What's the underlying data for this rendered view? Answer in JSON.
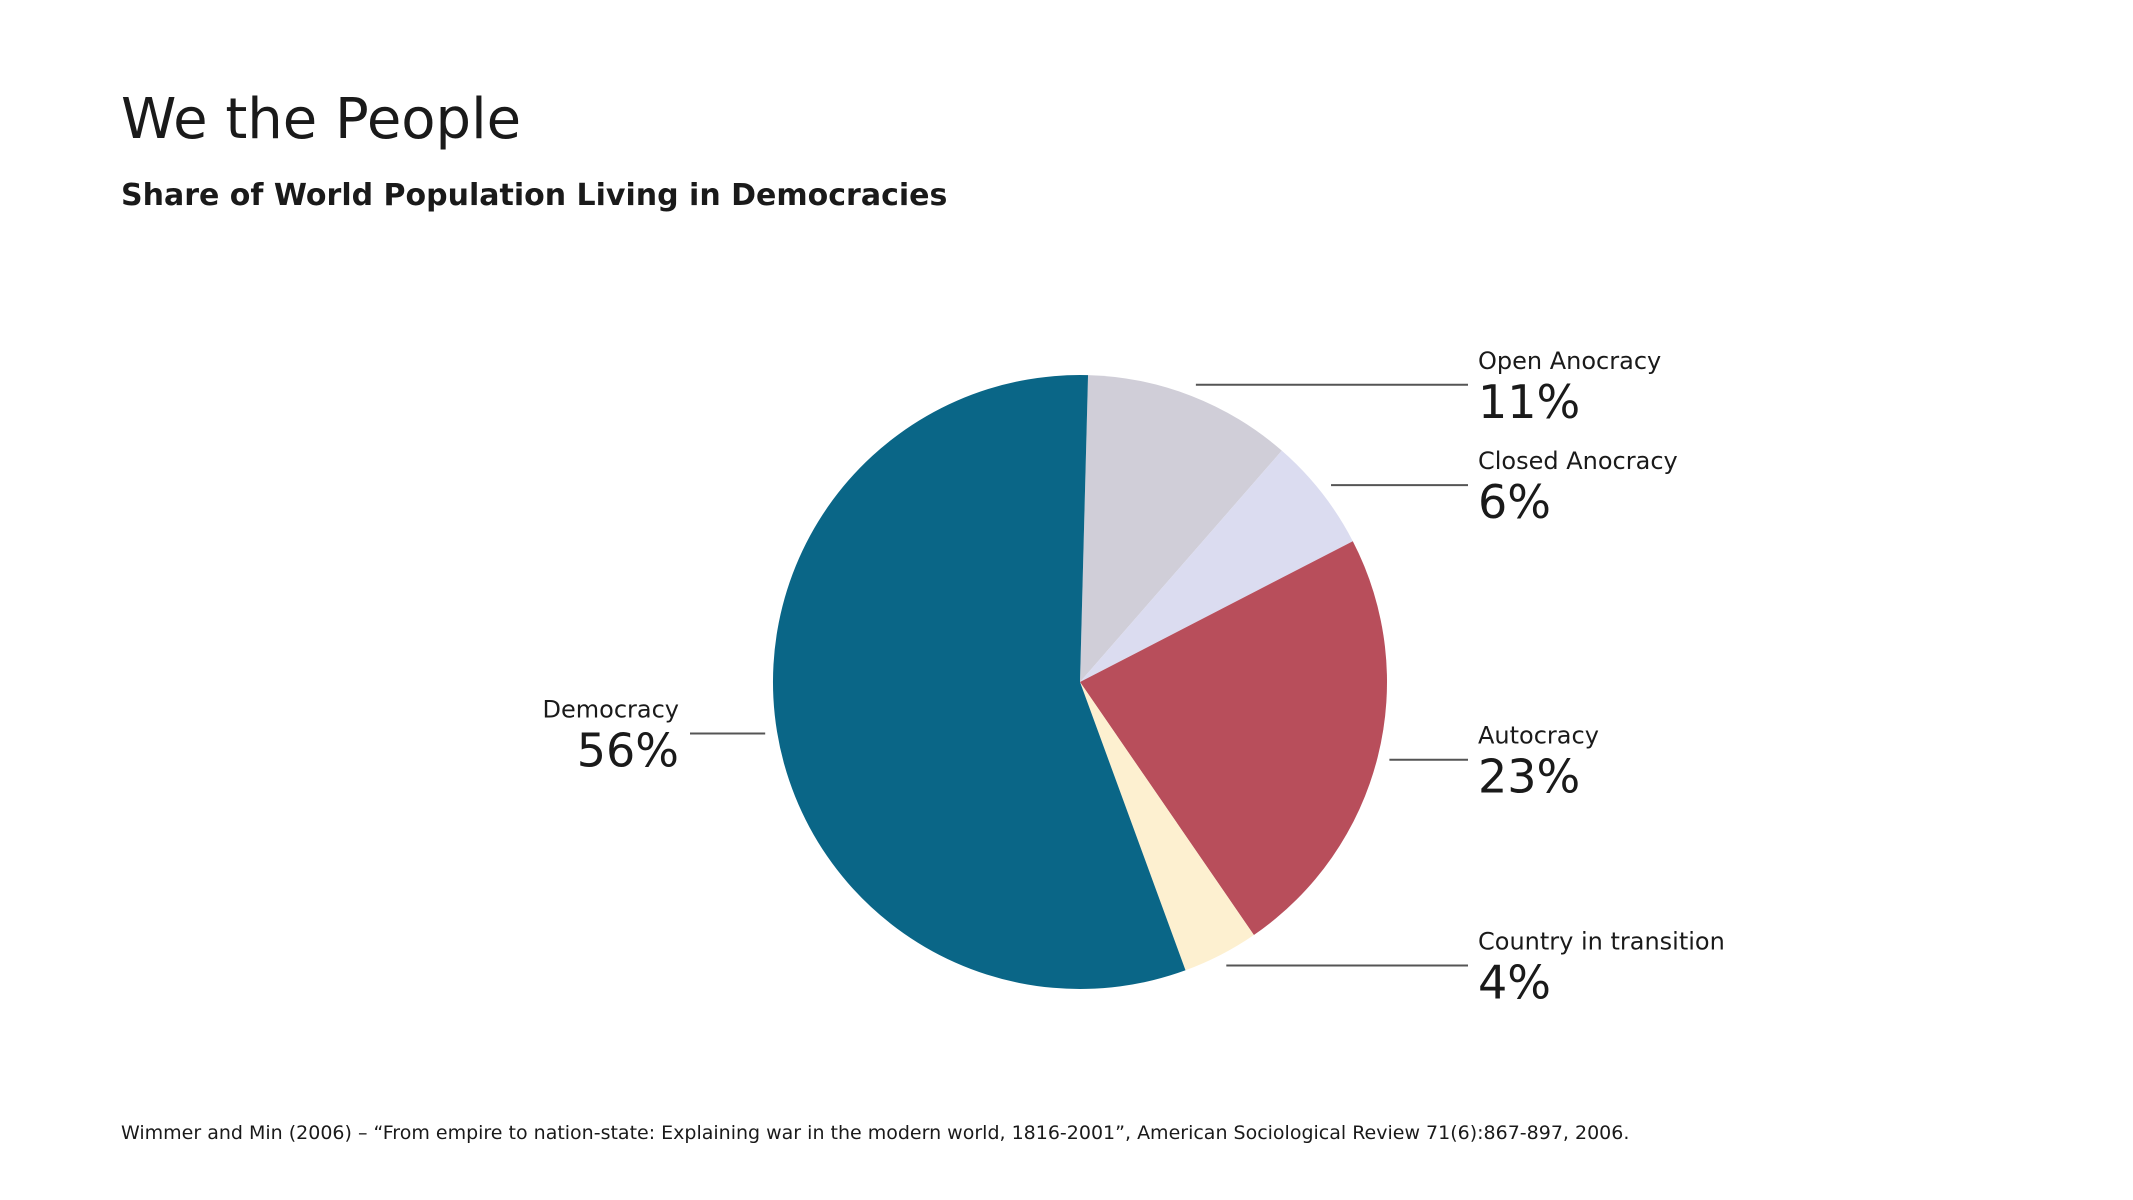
{
  "chart_data": {
    "type": "pie",
    "title": "We the People",
    "subtitle": "Share of World Population Living in Democracies",
    "source": "Wimmer and Min (2006) – “From empire to nation-state: Explaining war in the modern world, 1816-2001”, American Sociological Review 71(6):867-897, 2006.",
    "slices": [
      {
        "label": "Open Anocracy",
        "value": 11,
        "value_label": "11%",
        "color": "#d0ced8",
        "label_side": "right"
      },
      {
        "label": "Closed Anocracy",
        "value": 6,
        "value_label": "6%",
        "color": "#dbdcf0",
        "label_side": "right"
      },
      {
        "label": "Autocracy",
        "value": 23,
        "value_label": "23%",
        "color": "#b84e5b",
        "label_side": "right"
      },
      {
        "label": "Country in transition",
        "value": 4,
        "value_label": "4%",
        "color": "#fdf0d0",
        "label_side": "right"
      },
      {
        "label": "Democracy",
        "value": 56,
        "value_label": "56%",
        "color": "#0a6687",
        "label_side": "left"
      }
    ]
  }
}
